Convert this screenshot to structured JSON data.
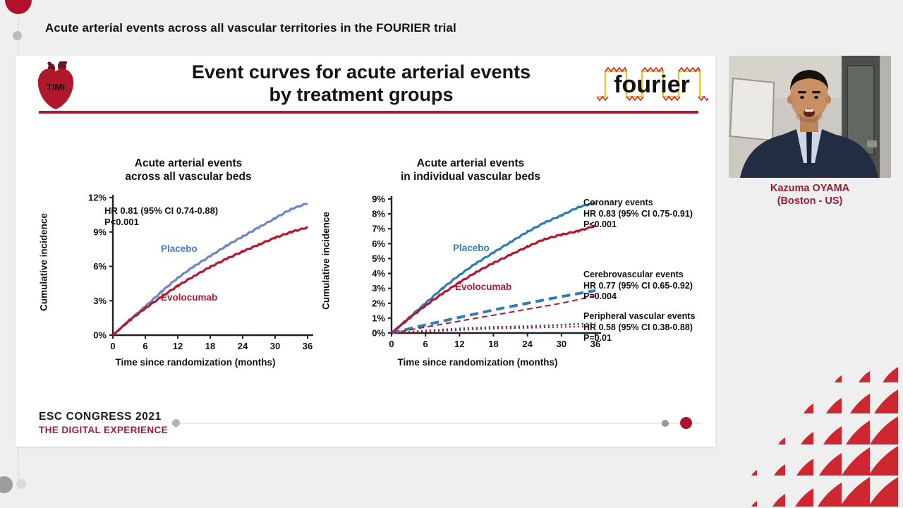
{
  "page": {
    "header": "Acute arterial events across all vascular territories in the FOURIER trial"
  },
  "logos": {
    "timi": "TIMI",
    "fourier": "fourier"
  },
  "slide": {
    "title_line1": "Event curves for acute arterial events",
    "title_line2": "by treatment groups"
  },
  "footer": {
    "congress": "ESC CONGRESS 2021",
    "tagline": "THE DIGITAL EXPERIENCE"
  },
  "speaker": {
    "name": "Kazuma OYAMA",
    "location": "(Boston - US)"
  },
  "colors": {
    "accent_red": "#a51c30",
    "pattern_red": "#cf2731",
    "placebo_blue_left": "#6d87c6",
    "placebo_blue_right": "#2e7cb8",
    "evolocumab_red": "#b5182f"
  },
  "chart_data": [
    {
      "type": "line",
      "title": [
        "Acute arterial events",
        "across all vascular beds"
      ],
      "xlabel": "Time since randomization (months)",
      "ylabel": "Cumulative incidence",
      "xlim": [
        0,
        36
      ],
      "xticks": [
        0,
        6,
        12,
        18,
        24,
        30,
        36
      ],
      "ylim": [
        0,
        12
      ],
      "yticks": [
        0,
        3,
        6,
        9,
        12
      ],
      "ytick_labels": [
        "0%",
        "3%",
        "6%",
        "9%",
        "12%"
      ],
      "annotation": [
        "HR 0.81 (95% CI 0.74-0.88)",
        "P<0.001"
      ],
      "grid": false,
      "series": [
        {
          "name": "Placebo",
          "color": "#6d87c6",
          "style": "solid",
          "width": 3.2,
          "x": [
            0,
            3,
            6,
            9,
            12,
            15,
            18,
            21,
            24,
            27,
            30,
            33,
            36
          ],
          "y": [
            0,
            1.3,
            2.5,
            3.8,
            5.0,
            6.0,
            6.9,
            7.8,
            8.6,
            9.4,
            10.2,
            11.0,
            11.5
          ]
        },
        {
          "name": "Evolocumab",
          "color": "#b5182f",
          "style": "solid",
          "width": 3.2,
          "x": [
            0,
            3,
            6,
            9,
            12,
            15,
            18,
            21,
            24,
            27,
            30,
            33,
            36
          ],
          "y": [
            0,
            1.25,
            2.35,
            3.35,
            4.3,
            5.15,
            5.95,
            6.65,
            7.3,
            7.9,
            8.5,
            9.0,
            9.4
          ]
        }
      ]
    },
    {
      "type": "line",
      "title": [
        "Acute arterial events",
        "in individual vascular beds"
      ],
      "xlabel": "Time since randomization (months)",
      "ylabel": "Cumulative incidence",
      "xlim": [
        0,
        36
      ],
      "xticks": [
        0,
        6,
        12,
        18,
        24,
        30,
        36
      ],
      "ylim": [
        0,
        9
      ],
      "yticks": [
        0,
        1,
        2,
        3,
        4,
        5,
        6,
        7,
        8,
        9
      ],
      "ytick_labels": [
        "0%",
        "1%",
        "2%",
        "3%",
        "4%",
        "5%",
        "6%",
        "7%",
        "8%",
        "9%"
      ],
      "grid": false,
      "annotations": [
        {
          "label": "Coronary events",
          "hr": "HR 0.83 (95% CI 0.75-0.91)",
          "p": "P<0.001"
        },
        {
          "label": "Cerebrovascular events",
          "hr": "HR 0.77 (95% CI 0.65-0.92)",
          "p": "P=0.004"
        },
        {
          "label": "Peripheral vascular events",
          "hr": "HR 0.58 (95% CI 0.38-0.88)",
          "p": "P=0.01"
        }
      ],
      "series": [
        {
          "name": "Placebo",
          "group": "Coronary events",
          "color": "#2e7cb8",
          "style": "solid",
          "width": 3.2,
          "x": [
            0,
            3,
            6,
            9,
            12,
            15,
            18,
            21,
            24,
            27,
            30,
            33,
            36
          ],
          "y": [
            0,
            1.0,
            2.0,
            3.0,
            3.9,
            4.7,
            5.4,
            6.1,
            6.8,
            7.4,
            7.9,
            8.45,
            8.75
          ]
        },
        {
          "name": "Evolocumab",
          "group": "Coronary events",
          "color": "#b5182f",
          "style": "solid",
          "width": 3.2,
          "x": [
            0,
            3,
            6,
            9,
            12,
            15,
            18,
            21,
            24,
            27,
            30,
            33,
            36
          ],
          "y": [
            0,
            0.95,
            1.85,
            2.65,
            3.4,
            4.1,
            4.7,
            5.25,
            5.8,
            6.3,
            6.6,
            6.85,
            7.2
          ]
        },
        {
          "name": "Placebo",
          "group": "Cerebrovascular events",
          "color": "#2e7cb8",
          "style": "dash-long",
          "width": 4,
          "x": [
            0,
            6,
            12,
            18,
            24,
            30,
            36
          ],
          "y": [
            0,
            0.55,
            1.05,
            1.55,
            2.0,
            2.45,
            2.85
          ]
        },
        {
          "name": "Evolocumab",
          "group": "Cerebrovascular events",
          "color": "#b5182f",
          "style": "dash",
          "width": 2,
          "x": [
            0,
            6,
            12,
            18,
            24,
            30,
            36
          ],
          "y": [
            0,
            0.4,
            0.8,
            1.2,
            1.6,
            2.0,
            2.5
          ]
        },
        {
          "name": "Placebo",
          "group": "Peripheral vascular events",
          "color": "#2e4f9e",
          "style": "dot",
          "width": 2.8,
          "x": [
            0,
            6,
            12,
            18,
            24,
            30,
            36
          ],
          "y": [
            0,
            0.15,
            0.3,
            0.4,
            0.45,
            0.55,
            0.65
          ]
        },
        {
          "name": "Evolocumab",
          "group": "Peripheral vascular events",
          "color": "#b5182f",
          "style": "dot",
          "width": 2.2,
          "x": [
            0,
            6,
            12,
            18,
            24,
            30,
            36
          ],
          "y": [
            0,
            0.1,
            0.2,
            0.3,
            0.35,
            0.4,
            0.45
          ]
        }
      ]
    }
  ]
}
